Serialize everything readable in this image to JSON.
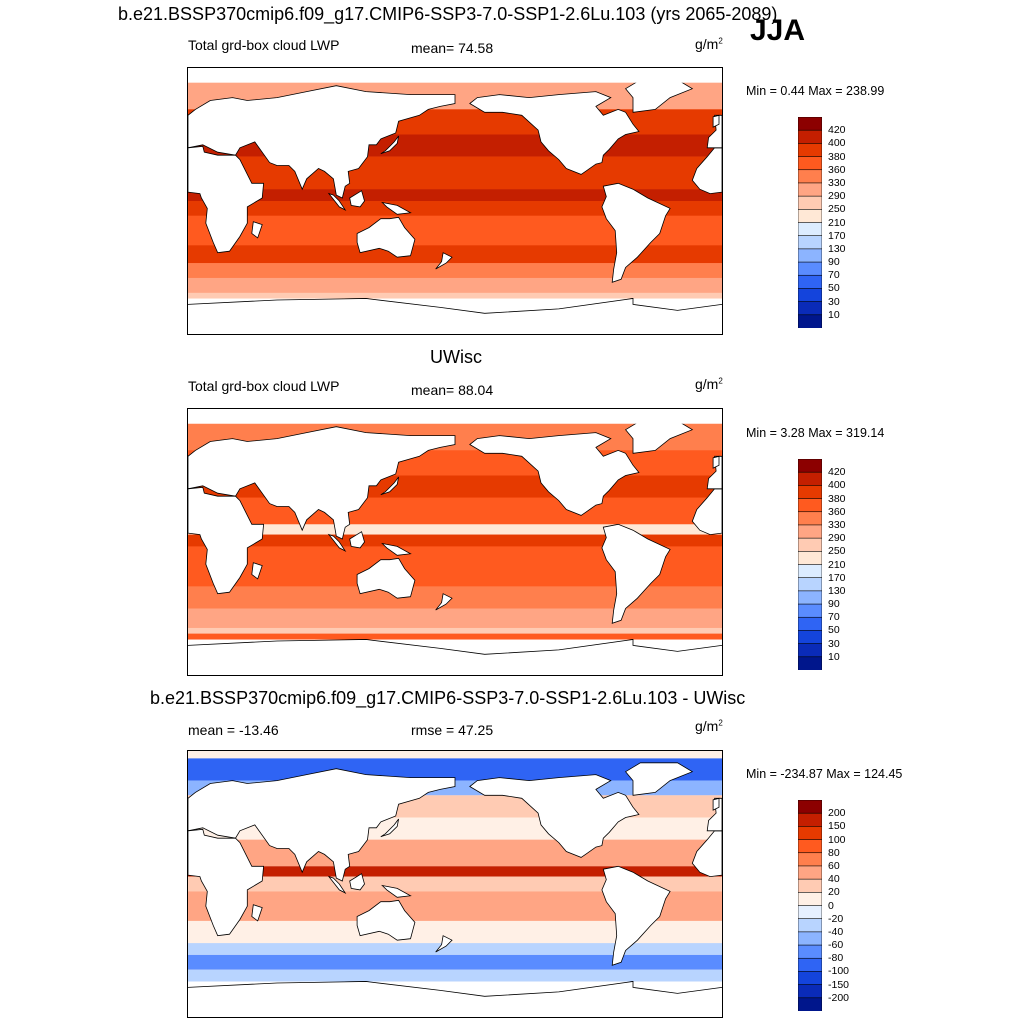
{
  "header": {
    "title": "b.e21.BSSP370cmip6.f09_g17.CMIP6-SSP3-7.0-SSP1-2.6Lu.103 (yrs 2065-2089)",
    "season": "JJA"
  },
  "panels": [
    {
      "id": "case",
      "heading": "",
      "left_label": "Total grd-box cloud LWP",
      "center_label": "mean=  74.58",
      "units": "g/m",
      "units_exp": "2",
      "minmax": "Min =   0.44 Max = 238.99",
      "cbar_levels": [
        "420",
        "400",
        "380",
        "360",
        "330",
        "290",
        "250",
        "210",
        "170",
        "130",
        "90",
        "70",
        "50",
        "30",
        "10"
      ],
      "cbar_colors": [
        "#8c0000",
        "#c41f00",
        "#e63a00",
        "#ff5a1f",
        "#ff7f4d",
        "#ffa584",
        "#ffcbb3",
        "#ffe8d6",
        "#dcecff",
        "#b8d4ff",
        "#8cb4ff",
        "#5a8cff",
        "#2f64f4",
        "#1444dc",
        "#0a2bb8",
        "#00168c"
      ]
    },
    {
      "id": "obs",
      "heading": "UWisc",
      "left_label": "Total grd-box cloud LWP",
      "center_label": "mean=  88.04",
      "units": "g/m",
      "units_exp": "2",
      "minmax": "Min =   3.28 Max = 319.14",
      "cbar_levels": [
        "420",
        "400",
        "380",
        "360",
        "330",
        "290",
        "250",
        "210",
        "170",
        "130",
        "90",
        "70",
        "50",
        "30",
        "10"
      ],
      "cbar_colors": [
        "#8c0000",
        "#c41f00",
        "#e63a00",
        "#ff5a1f",
        "#ff7f4d",
        "#ffa584",
        "#ffcbb3",
        "#ffe8d6",
        "#dcecff",
        "#b8d4ff",
        "#8cb4ff",
        "#5a8cff",
        "#2f64f4",
        "#1444dc",
        "#0a2bb8",
        "#00168c"
      ]
    },
    {
      "id": "diff",
      "heading": "b.e21.BSSP370cmip6.f09_g17.CMIP6-SSP3-7.0-SSP1-2.6Lu.103 - UWisc",
      "left_label": "mean = -13.46",
      "center_label": "rmse =  47.25",
      "units": "g/m",
      "units_exp": "2",
      "minmax": "Min = -234.87 Max = 124.45",
      "cbar_levels": [
        "200",
        "150",
        "100",
        "80",
        "60",
        "40",
        "20",
        "0",
        "-20",
        "-40",
        "-60",
        "-80",
        "-100",
        "-150",
        "-200"
      ],
      "cbar_colors": [
        "#8c0000",
        "#c41f00",
        "#e63a00",
        "#ff5a1f",
        "#ff7f4d",
        "#ffa584",
        "#ffcbb3",
        "#fff0e6",
        "#e6f0ff",
        "#b8d4ff",
        "#8cb4ff",
        "#5a8cff",
        "#2f64f4",
        "#1444dc",
        "#0a2bb8",
        "#00168c"
      ]
    }
  ],
  "chart_data": [
    {
      "type": "heatmap",
      "title": "b.e21.BSSP370cmip6.f09_g17.CMIP6-SSP3-7.0-SSP1-2.6Lu.103 (yrs 2065-2089)",
      "variable": "Total grd-box cloud LWP",
      "season": "JJA",
      "units": "g/m2",
      "mean": 74.58,
      "min": 0.44,
      "max": 238.99,
      "contour_levels": [
        10,
        30,
        50,
        70,
        90,
        130,
        170,
        210,
        250,
        290,
        330,
        360,
        380,
        400,
        420
      ]
    },
    {
      "type": "heatmap",
      "title": "UWisc",
      "variable": "Total grd-box cloud LWP",
      "units": "g/m2",
      "mean": 88.04,
      "min": 3.28,
      "max": 319.14,
      "contour_levels": [
        10,
        30,
        50,
        70,
        90,
        130,
        170,
        210,
        250,
        290,
        330,
        360,
        380,
        400,
        420
      ]
    },
    {
      "type": "heatmap",
      "title": "b.e21.BSSP370cmip6.f09_g17.CMIP6-SSP3-7.0-SSP1-2.6Lu.103 - UWisc",
      "units": "g/m2",
      "mean": -13.46,
      "rmse": 47.25,
      "min": -234.87,
      "max": 124.45,
      "contour_levels": [
        -200,
        -150,
        -100,
        -80,
        -60,
        -40,
        -20,
        0,
        20,
        40,
        60,
        80,
        100,
        150,
        200
      ]
    }
  ]
}
